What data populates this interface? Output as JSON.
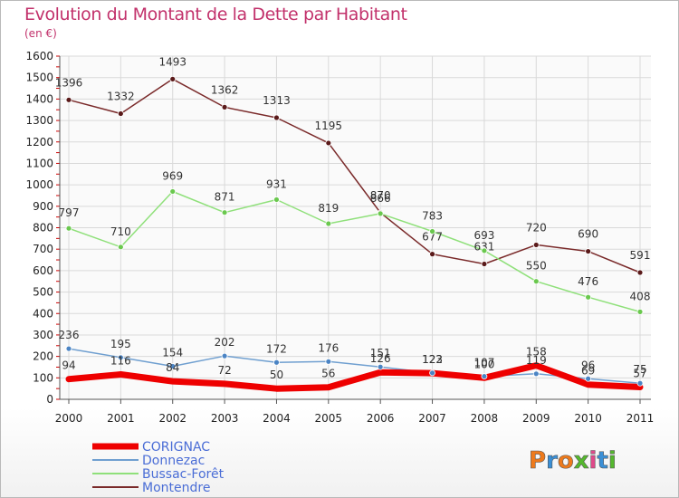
{
  "header": {
    "title": "Evolution du Montant de la Dette par Habitant",
    "subtitle": "(en €)"
  },
  "brand": {
    "logo_text": "Proxiti"
  },
  "chart_data": {
    "type": "line",
    "title": "Evolution du Montant de la Dette par Habitant",
    "subtitle": "(en €)",
    "xlabel": "",
    "ylabel": "",
    "x": [
      "2000",
      "2001",
      "2002",
      "2003",
      "2004",
      "2005",
      "2006",
      "2007",
      "2008",
      "2009",
      "2010",
      "2011"
    ],
    "ylim": [
      0,
      1600
    ],
    "yticks": [
      0,
      100,
      200,
      300,
      400,
      500,
      600,
      700,
      800,
      900,
      1000,
      1100,
      1200,
      1300,
      1400,
      1500,
      1600
    ],
    "grid": true,
    "legend_position": "bottom-left",
    "series": [
      {
        "name": "Montendre",
        "color": "#7a2a2a",
        "point_color": "#5a1a1a",
        "line_width": 1.5,
        "values": [
          1396,
          1332,
          1493,
          1362,
          1313,
          1195,
          870,
          677,
          631,
          720,
          690,
          591
        ]
      },
      {
        "name": "Bussac-Forêt",
        "color": "#8fe07a",
        "point_color": "#6ac84e",
        "line_width": 1.5,
        "values": [
          797,
          710,
          969,
          871,
          931,
          819,
          866,
          783,
          693,
          550,
          476,
          408
        ]
      },
      {
        "name": "Donnezac",
        "color": "#6f9fd0",
        "point_color": "#4b84c4",
        "line_width": 1.5,
        "values": [
          236,
          195,
          154,
          202,
          172,
          176,
          151,
          123,
          107,
          119,
          96,
          75
        ]
      },
      {
        "name": "CORIGNAC",
        "color": "#ee0000",
        "point_color": "#ee0000",
        "line_width": 7,
        "values": [
          94,
          116,
          84,
          72,
          50,
          56,
          126,
          122,
          100,
          158,
          69,
          57
        ]
      }
    ]
  }
}
